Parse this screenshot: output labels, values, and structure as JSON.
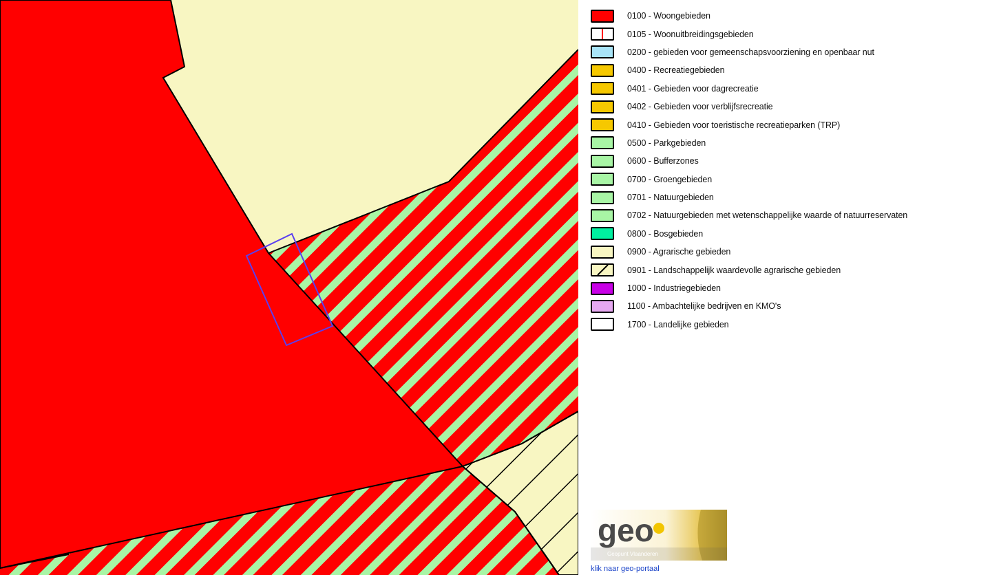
{
  "map": {
    "colors": {
      "woongebieden": "#ff0000",
      "agrarische": "#f8f6c2",
      "groen_stripe": "#a8f5a5",
      "outline": "#000000",
      "selection": "#5a3ff0"
    },
    "layers": [
      "0100 - Woongebieden",
      "0900 - Agrarische gebieden",
      "0701 - Natuurgebieden",
      "0901 - Landschappelijk waardevolle agrarische gebieden"
    ]
  },
  "legend": {
    "items": [
      {
        "label": "0100 - Woongebieden",
        "fill": "#ff0000",
        "pattern": "solid"
      },
      {
        "label": "0105 - Woonuitbreidingsgebieden",
        "fill": "#ffffff",
        "pattern": "red-bar"
      },
      {
        "label": "0200 - gebieden voor gemeenschapsvoorziening en openbaar nut",
        "fill": "#a9e4f7",
        "pattern": "solid"
      },
      {
        "label": "0400 - Recreatiegebieden",
        "fill": "#f6c800",
        "pattern": "solid"
      },
      {
        "label": "0401 - Gebieden voor dagrecreatie",
        "fill": "#f6c800",
        "pattern": "solid"
      },
      {
        "label": "0402 - Gebieden voor verblijfsrecreatie",
        "fill": "#f6c800",
        "pattern": "solid"
      },
      {
        "label": "0410 - Gebieden voor toeristische recreatieparken (TRP)",
        "fill": "#f6c800",
        "pattern": "solid"
      },
      {
        "label": "0500 - Parkgebieden",
        "fill": "#a8f5a5",
        "pattern": "solid"
      },
      {
        "label": "0600 - Bufferzones",
        "fill": "#a8f5a5",
        "pattern": "solid"
      },
      {
        "label": "0700 - Groengebieden",
        "fill": "#a8f5a5",
        "pattern": "solid"
      },
      {
        "label": "0701 - Natuurgebieden",
        "fill": "#a8f5a5",
        "pattern": "solid"
      },
      {
        "label": "0702 - Natuurgebieden met wetenschappelijke waarde of natuurreservaten",
        "fill": "#a8f5a5",
        "pattern": "solid"
      },
      {
        "label": "0800 - Bosgebieden",
        "fill": "#00f0a0",
        "pattern": "solid"
      },
      {
        "label": "0900 - Agrarische gebieden",
        "fill": "#f8f6c2",
        "pattern": "solid"
      },
      {
        "label": "0901 - Landschappelijk waardevolle agrarische gebieden",
        "fill": "#f8f6c2",
        "pattern": "diagonal"
      },
      {
        "label": "1000 - Industriegebieden",
        "fill": "#c800e6",
        "pattern": "solid"
      },
      {
        "label": "1100 - Ambachtelijke bedrijven en KMO's",
        "fill": "#e6a8f0",
        "pattern": "solid"
      },
      {
        "label": "1700 - Landelijke gebieden",
        "fill": "#ffffff",
        "pattern": "solid"
      }
    ]
  },
  "logo": {
    "word": "geo",
    "subtitle": "Geopunt Vlaanderen",
    "accent_color": "#f2c500",
    "text_color": "#4a4a4a"
  },
  "portal_link": {
    "label": "klik naar geo-portaal"
  }
}
